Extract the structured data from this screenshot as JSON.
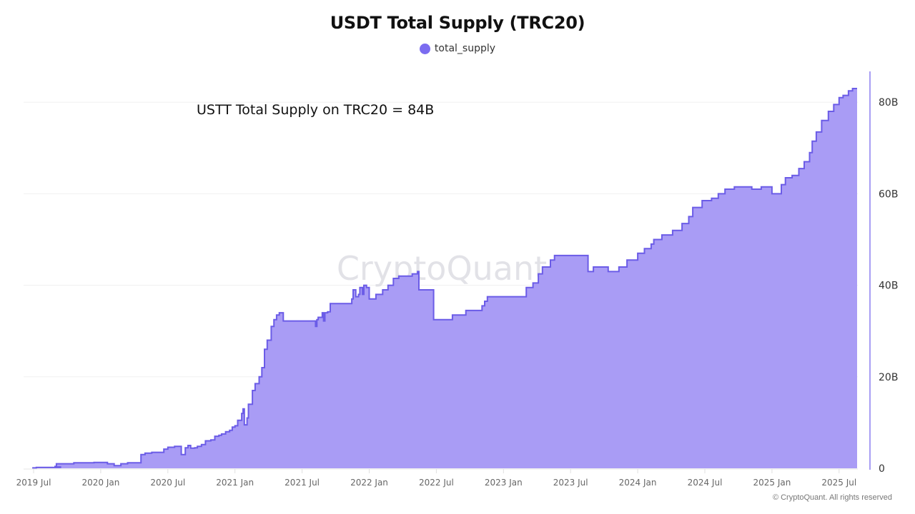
{
  "header": {
    "title": "USDT Total Supply (TRC20)"
  },
  "legend": {
    "items": [
      {
        "label": "total_supply",
        "color": "#7b6cf0"
      }
    ]
  },
  "annotation": {
    "text": "USTT Total Supply on TRC20 = 84B"
  },
  "watermark": {
    "text": "CryptoQuant"
  },
  "footer": {
    "copyright": "© CryptoQuant. All rights reserved"
  },
  "colors": {
    "line": "#6b5ce7",
    "fill": "#a497f4",
    "axis": "#8b7ff0",
    "grid": "#f0f0f0"
  },
  "chart_data": {
    "type": "area",
    "title": "USDT Total Supply (TRC20)",
    "xlabel": "",
    "ylabel": "",
    "y_axis_position": "right",
    "ylim": [
      0,
      87
    ],
    "yticks": [
      0,
      20,
      40,
      60,
      80
    ],
    "ytick_labels": [
      "0",
      "20B",
      "40B",
      "60B",
      "80B"
    ],
    "xtick_labels": [
      "2019 Jul",
      "2020 Jan",
      "2020 Jul",
      "2021 Jan",
      "2021 Jul",
      "2022 Jan",
      "2022 Jul",
      "2023 Jan",
      "2023 Jul",
      "2024 Jan",
      "2024 Jul",
      "2025 Jan",
      "2025 Jul"
    ],
    "xtick_years": [
      2019.5,
      2020.0,
      2020.5,
      2021.0,
      2021.5,
      2022.0,
      2022.5,
      2023.0,
      2023.5,
      2024.0,
      2024.5,
      2025.0,
      2025.5
    ],
    "grid": true,
    "legend_position": "top-center",
    "series": [
      {
        "name": "total_supply",
        "unit": "B",
        "x": [
          2019.49,
          2019.52,
          2019.7,
          2019.66,
          2019.67,
          2019.8,
          2019.95,
          2020.05,
          2020.1,
          2020.12,
          2020.15,
          2020.2,
          2020.25,
          2020.3,
          2020.33,
          2020.38,
          2020.45,
          2020.47,
          2020.5,
          2020.55,
          2020.6,
          2020.63,
          2020.65,
          2020.67,
          2020.7,
          2020.72,
          2020.75,
          2020.78,
          2020.82,
          2020.85,
          2020.88,
          2020.9,
          2020.93,
          2020.96,
          2020.98,
          2021.0,
          2021.02,
          2021.05,
          2021.06,
          2021.07,
          2021.09,
          2021.1,
          2021.13,
          2021.15,
          2021.18,
          2021.2,
          2021.22,
          2021.24,
          2021.27,
          2021.29,
          2021.31,
          2021.33,
          2021.36,
          2021.38,
          2021.4,
          2021.42,
          2021.44,
          2021.45,
          2021.5,
          2021.55,
          2021.6,
          2021.61,
          2021.62,
          2021.65,
          2021.66,
          2021.67,
          2021.69,
          2021.71,
          2021.73,
          2021.85,
          2021.87,
          2021.88,
          2021.9,
          2021.92,
          2021.93,
          2021.95,
          2021.96,
          2021.98,
          2022.0,
          2022.02,
          2022.05,
          2022.08,
          2022.1,
          2022.14,
          2022.18,
          2022.22,
          2022.26,
          2022.32,
          2022.36,
          2022.37,
          2022.38,
          2022.47,
          2022.48,
          2022.6,
          2022.62,
          2022.72,
          2022.84,
          2022.86,
          2022.88,
          2023.15,
          2023.17,
          2023.22,
          2023.26,
          2023.29,
          2023.35,
          2023.38,
          2023.47,
          2023.63,
          2023.67,
          2023.78,
          2023.86,
          2023.92,
          2024.0,
          2024.05,
          2024.1,
          2024.12,
          2024.18,
          2024.26,
          2024.33,
          2024.38,
          2024.41,
          2024.48,
          2024.55,
          2024.6,
          2024.65,
          2024.72,
          2024.82,
          2024.85,
          2024.92,
          2025.0,
          2025.07,
          2025.1,
          2025.15,
          2025.2,
          2025.24,
          2025.28,
          2025.3,
          2025.33,
          2025.37,
          2025.42,
          2025.46,
          2025.5,
          2025.53,
          2025.57,
          2025.6,
          2025.62
        ],
        "values": [
          0.1,
          0.2,
          0.3,
          0.4,
          1.0,
          1.2,
          1.3,
          1.0,
          0.6,
          0.6,
          1.0,
          1.2,
          1.2,
          3.0,
          3.3,
          3.5,
          3.5,
          4.2,
          4.6,
          4.8,
          3.0,
          4.5,
          5.0,
          4.4,
          4.5,
          4.8,
          5.2,
          6.0,
          6.2,
          7.0,
          7.2,
          7.5,
          8.0,
          8.3,
          9.0,
          9.3,
          10.5,
          12.0,
          13.0,
          9.5,
          11.0,
          14.0,
          17.0,
          18.5,
          20.0,
          22.0,
          26.0,
          28.0,
          31.0,
          32.5,
          33.5,
          34.0,
          32.2,
          32.2,
          32.2,
          32.2,
          32.2,
          32.2,
          32.2,
          32.2,
          31.0,
          32.5,
          33.0,
          34.0,
          32.2,
          34.0,
          34.2,
          36.0,
          36.0,
          36.0,
          37.0,
          39.0,
          37.5,
          38.0,
          39.5,
          38.0,
          40.0,
          39.5,
          37.0,
          37.0,
          38.0,
          38.0,
          39.0,
          40.0,
          41.5,
          42.0,
          42.0,
          42.5,
          43.0,
          39.0,
          39.0,
          39.0,
          32.5,
          32.5,
          33.5,
          34.5,
          35.5,
          36.5,
          37.5,
          37.5,
          39.5,
          40.5,
          42.5,
          44.0,
          45.5,
          46.5,
          46.5,
          43.0,
          44.0,
          43.0,
          44.0,
          45.5,
          47.0,
          48.0,
          49.0,
          50.0,
          51.0,
          52.0,
          53.5,
          55.0,
          57.0,
          58.5,
          59.0,
          60.0,
          61.0,
          61.5,
          61.5,
          61.0,
          61.5,
          60.0,
          62.0,
          63.5,
          64.0,
          65.5,
          67.0,
          69.0,
          71.5,
          73.5,
          76.0,
          78.0,
          79.5,
          81.0,
          81.5,
          82.5,
          83.0,
          83.0
        ]
      }
    ],
    "annotations": [
      {
        "text": "USTT Total Supply on TRC20 = 84B",
        "position": "upper-left"
      }
    ],
    "watermark": "CryptoQuant"
  }
}
